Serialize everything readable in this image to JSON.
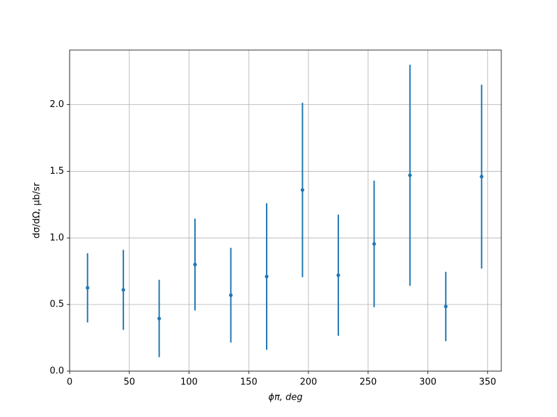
{
  "chart_data": {
    "type": "errorbar",
    "xlabel": "ϕπ, deg",
    "ylabel": "dσ/dΩ, μb/sr",
    "x": [
      15,
      45,
      75,
      105,
      135,
      165,
      195,
      225,
      255,
      285,
      315,
      345
    ],
    "series": [
      {
        "color": "#1f77b4",
        "values": [
          0.625,
          0.61,
          0.395,
          0.8,
          0.57,
          0.71,
          1.36,
          0.72,
          0.955,
          1.47,
          0.485,
          1.46
        ],
        "errors": [
          0.26,
          0.3,
          0.29,
          0.345,
          0.355,
          0.55,
          0.655,
          0.455,
          0.475,
          0.83,
          0.26,
          0.69
        ]
      }
    ],
    "xlim": [
      0,
      361.5
    ],
    "ylim": [
      0,
      2.41
    ],
    "xticks": [
      0,
      50,
      100,
      150,
      200,
      250,
      300,
      350
    ],
    "yticks": [
      {
        "value": 0,
        "label": "0.0"
      },
      {
        "value": 0.5,
        "label": "0.5"
      },
      {
        "value": 1,
        "label": "1.0"
      },
      {
        "value": 1.5,
        "label": "1.5"
      },
      {
        "value": 2,
        "label": "2.0"
      }
    ],
    "grid": true
  }
}
